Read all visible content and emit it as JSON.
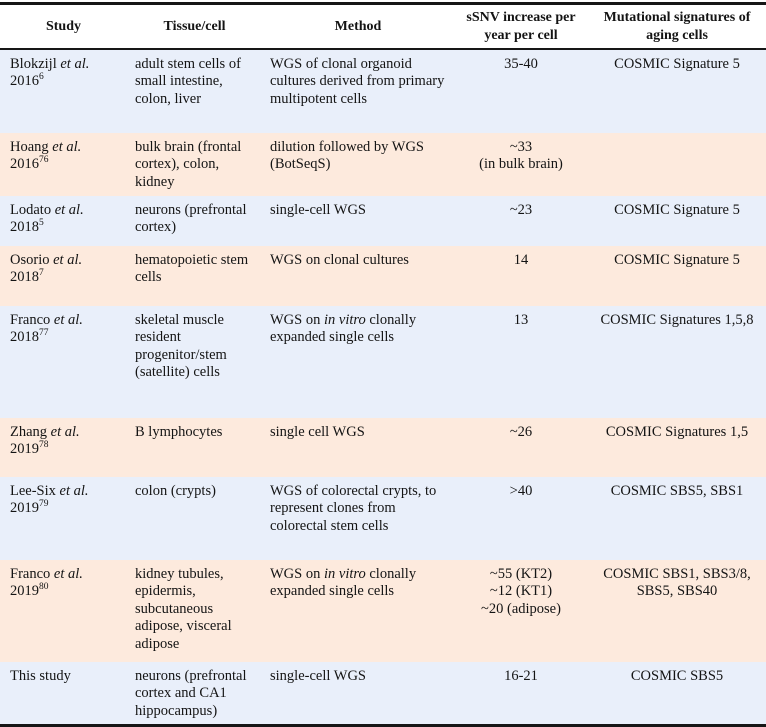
{
  "colors": {
    "row_blue": "#e9effa",
    "row_orange": "#fdeadd",
    "border": "#161616",
    "text": "#141414",
    "header_bg": "#ffffff"
  },
  "table": {
    "columns": [
      "Study",
      "Tissue/cell",
      "Method",
      "sSNV increase per year per cell",
      "Mutational signatures of aging cells"
    ],
    "rows": [
      {
        "bg": "blue",
        "study": [
          [
            {
              "t": "Blokzijl "
            },
            {
              "t": "et al.",
              "i": true
            }
          ],
          [
            {
              "t": "2016"
            },
            {
              "t": "6",
              "sup": true
            }
          ]
        ],
        "tissue": [
          [
            {
              "t": "adult stem cells of small intestine, colon, liver"
            }
          ]
        ],
        "method": [
          [
            {
              "t": "WGS of clonal organoid cultures derived from primary multipotent cells"
            }
          ]
        ],
        "ssnv": [
          [
            {
              "t": "35-40"
            }
          ]
        ],
        "signatures": [
          [
            {
              "t": "COSMIC Signature 5"
            }
          ]
        ]
      },
      {
        "bg": "orange",
        "study": [
          [
            {
              "t": "Hoang "
            },
            {
              "t": "et al.",
              "i": true
            }
          ],
          [
            {
              "t": "2016"
            },
            {
              "t": "76",
              "sup": true
            }
          ]
        ],
        "tissue": [
          [
            {
              "t": "bulk brain (frontal cortex), colon, kidney"
            }
          ]
        ],
        "method": [
          [
            {
              "t": "dilution followed by WGS (BotSeqS)"
            }
          ]
        ],
        "ssnv": [
          [
            {
              "t": "~33"
            }
          ],
          [
            {
              "t": "(in bulk brain)"
            }
          ]
        ],
        "signatures": []
      },
      {
        "bg": "blue",
        "study": [
          [
            {
              "t": "Lodato "
            },
            {
              "t": "et al.",
              "i": true
            }
          ],
          [
            {
              "t": "2018"
            },
            {
              "t": "5",
              "sup": true
            }
          ]
        ],
        "tissue": [
          [
            {
              "t": "neurons (prefrontal cortex)"
            }
          ]
        ],
        "method": [
          [
            {
              "t": "single-cell WGS"
            }
          ]
        ],
        "ssnv": [
          [
            {
              "t": "~23"
            }
          ]
        ],
        "signatures": [
          [
            {
              "t": "COSMIC Signature 5"
            }
          ]
        ]
      },
      {
        "bg": "orange",
        "study": [
          [
            {
              "t": "Osorio "
            },
            {
              "t": "et al.",
              "i": true
            }
          ],
          [
            {
              "t": "2018"
            },
            {
              "t": "7",
              "sup": true
            }
          ]
        ],
        "tissue": [
          [
            {
              "t": "hematopoietic stem cells"
            }
          ]
        ],
        "method": [
          [
            {
              "t": "WGS on clonal cultures"
            }
          ]
        ],
        "ssnv": [
          [
            {
              "t": "14"
            }
          ]
        ],
        "signatures": [
          [
            {
              "t": "COSMIC Signature 5"
            }
          ]
        ]
      },
      {
        "bg": "blue",
        "study": [
          [
            {
              "t": "Franco "
            },
            {
              "t": "et al.",
              "i": true
            }
          ],
          [
            {
              "t": "2018"
            },
            {
              "t": "77",
              "sup": true
            }
          ]
        ],
        "tissue": [
          [
            {
              "t": "skeletal muscle resident progenitor/stem (satellite) cells"
            }
          ]
        ],
        "method": [
          [
            {
              "t": "WGS on "
            },
            {
              "t": "in vitro",
              "i": true
            },
            {
              "t": " clonally expanded single cells"
            }
          ]
        ],
        "ssnv": [
          [
            {
              "t": "13"
            }
          ]
        ],
        "signatures": [
          [
            {
              "t": "COSMIC Signatures 1,5,8"
            }
          ]
        ]
      },
      {
        "bg": "orange",
        "study": [
          [
            {
              "t": "Zhang "
            },
            {
              "t": "et al.",
              "i": true
            }
          ],
          [
            {
              "t": "2019"
            },
            {
              "t": "78",
              "sup": true
            }
          ]
        ],
        "tissue": [
          [
            {
              "t": "B lymphocytes"
            }
          ]
        ],
        "method": [
          [
            {
              "t": "single cell WGS"
            }
          ]
        ],
        "ssnv": [
          [
            {
              "t": "~26"
            }
          ]
        ],
        "signatures": [
          [
            {
              "t": "COSMIC Signatures 1,5"
            }
          ]
        ]
      },
      {
        "bg": "blue",
        "study": [
          [
            {
              "t": "Lee-Six "
            },
            {
              "t": "et al.",
              "i": true
            }
          ],
          [
            {
              "t": "2019"
            },
            {
              "t": "79",
              "sup": true
            }
          ]
        ],
        "tissue": [
          [
            {
              "t": "colon (crypts)"
            }
          ]
        ],
        "method": [
          [
            {
              "t": "WGS of colorectal crypts, to represent clones from colorectal stem cells"
            }
          ]
        ],
        "ssnv": [
          [
            {
              "t": ">40"
            }
          ]
        ],
        "signatures": [
          [
            {
              "t": "COSMIC SBS5, SBS1"
            }
          ]
        ]
      },
      {
        "bg": "orange",
        "study": [
          [
            {
              "t": "Franco "
            },
            {
              "t": "et al.",
              "i": true
            }
          ],
          [
            {
              "t": "2019"
            },
            {
              "t": "80",
              "sup": true
            }
          ]
        ],
        "tissue": [
          [
            {
              "t": "kidney tubules, epidermis, subcutaneous adipose, visceral adipose"
            }
          ]
        ],
        "method": [
          [
            {
              "t": "WGS on "
            },
            {
              "t": "in vitro",
              "i": true
            },
            {
              "t": " clonally expanded single cells"
            }
          ]
        ],
        "ssnv": [
          [
            {
              "t": "~55 (KT2)"
            }
          ],
          [
            {
              "t": "~12 (KT1)"
            }
          ],
          [
            {
              "t": "~20 (adipose)"
            }
          ]
        ],
        "signatures": [
          [
            {
              "t": "COSMIC SBS1, SBS3/8, SBS5, SBS40"
            }
          ]
        ]
      },
      {
        "bg": "blue",
        "study": [
          [
            {
              "t": "This study"
            }
          ]
        ],
        "tissue": [
          [
            {
              "t": "neurons (prefrontal cortex and CA1 hippocampus)"
            }
          ]
        ],
        "method": [
          [
            {
              "t": "single-cell WGS"
            }
          ]
        ],
        "ssnv": [
          [
            {
              "t": "16-21"
            }
          ]
        ],
        "signatures": [
          [
            {
              "t": "COSMIC SBS5"
            }
          ]
        ]
      }
    ]
  }
}
